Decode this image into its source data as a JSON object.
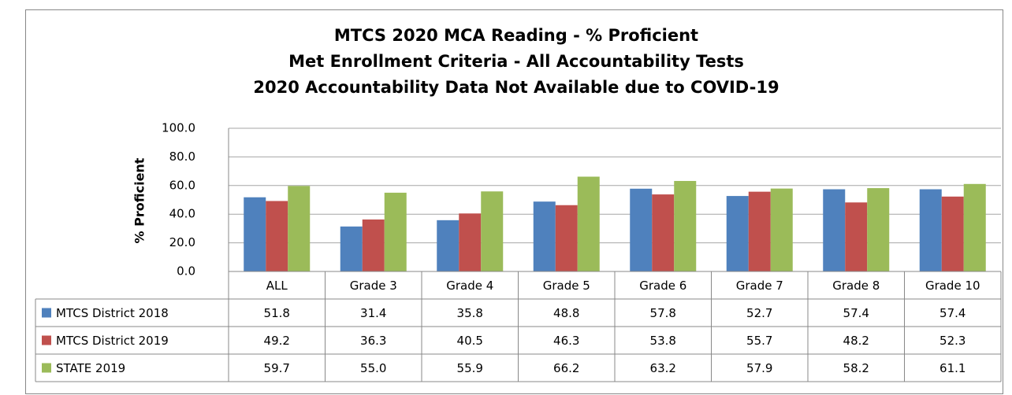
{
  "chart_data": {
    "type": "bar",
    "title": "MTCS 2020 MCA Reading - % Proficient",
    "subtitle": [
      "Met Enrollment Criteria -  All Accountability Tests",
      "2020 Accountability Data Not Available due to COVID-19"
    ],
    "y_label": "% Proficient",
    "categories": [
      "ALL",
      "Grade 3",
      "Grade 4",
      "Grade 5",
      "Grade 6",
      "Grade 7",
      "Grade 8",
      "Grade 10"
    ],
    "series": [
      {
        "name": "MTCS District 2018",
        "color": "#4f81bd",
        "values": [
          51.8,
          31.4,
          35.8,
          48.8,
          57.8,
          52.7,
          57.4,
          57.4
        ],
        "value_labels": [
          "51.8",
          "31.4",
          "35.8",
          "48.8",
          "57.8",
          "52.7",
          "57.4",
          "57.4"
        ]
      },
      {
        "name": "MTCS District 2019",
        "color": "#c0504d",
        "values": [
          49.2,
          36.3,
          40.5,
          46.3,
          53.8,
          55.7,
          48.2,
          52.3
        ],
        "value_labels": [
          "49.2",
          "36.3",
          "40.5",
          "46.3",
          "53.8",
          "55.7",
          "48.2",
          "52.3"
        ]
      },
      {
        "name": "STATE 2019",
        "color": "#9bbb59",
        "values": [
          59.7,
          55,
          55.9,
          66.2,
          63.2,
          57.9,
          58.2,
          61.1
        ],
        "value_labels": [
          "59.7",
          "55.0",
          "55.9",
          "66.2",
          "63.2",
          "57.9",
          "58.2",
          "61.1"
        ]
      }
    ],
    "ylim": [
      0,
      100
    ],
    "yticks": [
      {
        "value": 0,
        "label": "0.0"
      },
      {
        "value": 20,
        "label": "20.0"
      },
      {
        "value": 40,
        "label": "40.0"
      },
      {
        "value": 60,
        "label": "60.0"
      },
      {
        "value": 80,
        "label": "80.0"
      },
      {
        "value": 100,
        "label": "100.0"
      }
    ],
    "grid": true
  }
}
